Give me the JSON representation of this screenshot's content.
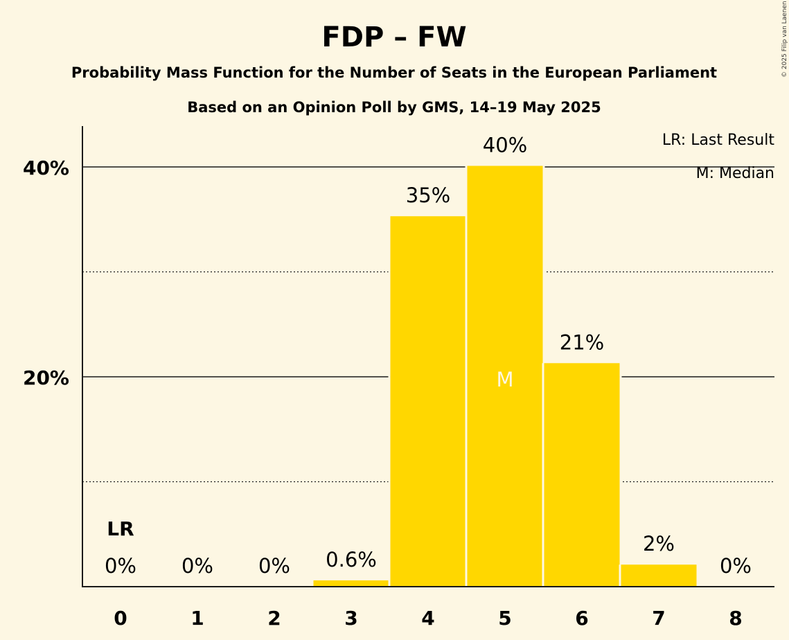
{
  "chart_data": {
    "type": "bar",
    "title": "FDP – FW",
    "subtitle": "Probability Mass Function for the Number of Seats in the European Parliament",
    "subtitle2": "Based on an Opinion Poll by GMS, 14–19 May 2025",
    "xlabel": "",
    "ylabel": "",
    "categories": [
      "0",
      "1",
      "2",
      "3",
      "4",
      "5",
      "6",
      "7",
      "8"
    ],
    "values": [
      0,
      0,
      0,
      0.6,
      35.3,
      40.1,
      21.3,
      2.1,
      0
    ],
    "value_labels": [
      "0%",
      "0%",
      "0%",
      "0.6%",
      "35%",
      "40%",
      "21%",
      "2%",
      "0%"
    ],
    "ylim": [
      0,
      44
    ],
    "yticks": [
      {
        "value": 20,
        "label": "20%",
        "style": "solid"
      },
      {
        "value": 40,
        "label": "40%",
        "style": "solid"
      }
    ],
    "minor_gridlines": [
      10,
      30
    ],
    "grid": true,
    "bar_color": "#ffd700",
    "background_color": "#fdf7e3",
    "last_result_index": 0,
    "last_result_marker": "LR",
    "median_index": 5,
    "median_marker": "M",
    "legend": {
      "placement": "top-right",
      "entries": [
        "LR: Last Result",
        "M: Median"
      ]
    },
    "copyright": "© 2025 Filip van Laenen"
  }
}
